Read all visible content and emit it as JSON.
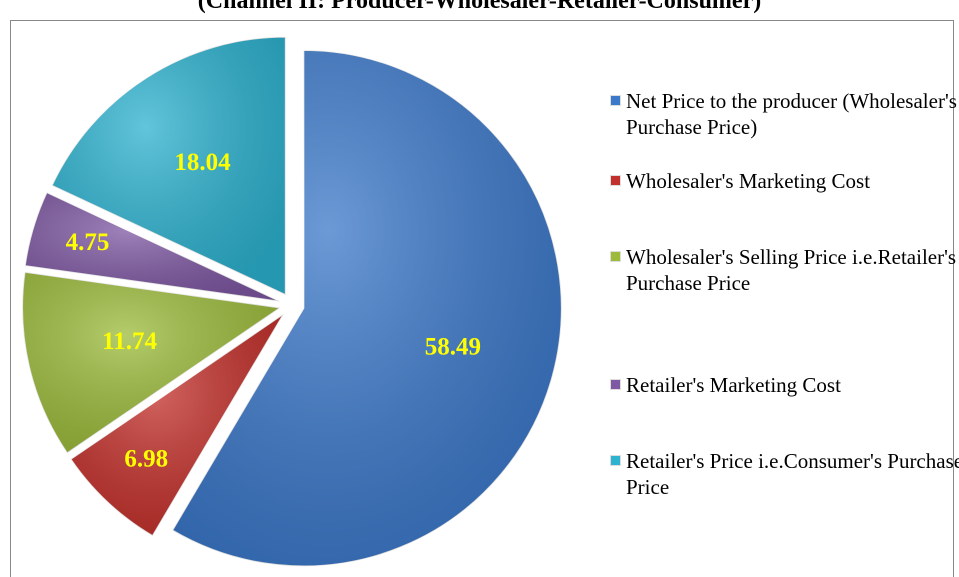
{
  "chart_data": {
    "type": "pie",
    "title": "(Channel II: Producer-Wholesaler-Retailer-Consumer)",
    "categories": [
      "Net Price to the producer (Wholesaler's Purchase Price)",
      "Wholesaler's Marketing Cost",
      "Wholesaler's Selling Price i.e.Retailer's Purchase Price",
      "Retailer's Marketing Cost",
      "Retailer's Price i.e.Consumer's Purchase Price"
    ],
    "values": [
      58.49,
      6.98,
      11.74,
      4.75,
      18.04
    ],
    "colors": [
      "#3b78c9",
      "#c3302b",
      "#9cbb3b",
      "#7e58a2",
      "#2db2cf"
    ],
    "legend": "right"
  }
}
